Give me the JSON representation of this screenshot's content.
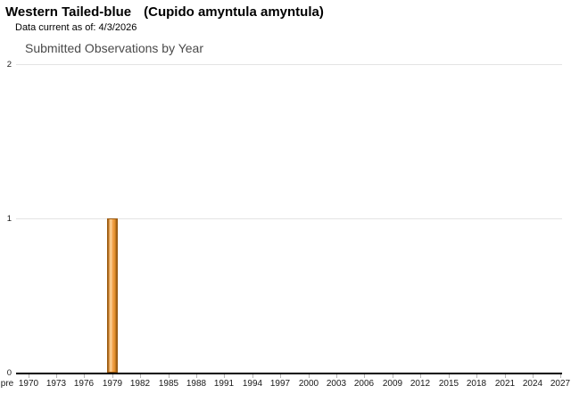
{
  "header": {
    "common_name": "Western Tailed-blue",
    "scientific_name": "(Cupido amyntula amyntula)",
    "data_current": "Data current as of: 4/3/2026"
  },
  "chart_data": {
    "type": "bar",
    "title": "Submitted Observations by Year",
    "xlabel": "",
    "ylabel": "",
    "ylim": [
      0,
      2
    ],
    "y_ticks": [
      0,
      1,
      2
    ],
    "x_tick_labels": [
      "pre",
      "1970",
      "1973",
      "1976",
      "1979",
      "1982",
      "1985",
      "1988",
      "1991",
      "1994",
      "1997",
      "2000",
      "2003",
      "2006",
      "2009",
      "2012",
      "2015",
      "2018",
      "2021",
      "2024",
      "2027"
    ],
    "x_range_years": [
      1970,
      2027
    ],
    "grid": "horizontal",
    "legend": "none",
    "bars": [
      {
        "year": 1979,
        "value": 1
      }
    ],
    "colors": {
      "bar_fill": "#f0a24b",
      "bar_border": "#9a5a12",
      "gridline": "#e3e3e3",
      "axis": "#000000"
    }
  }
}
